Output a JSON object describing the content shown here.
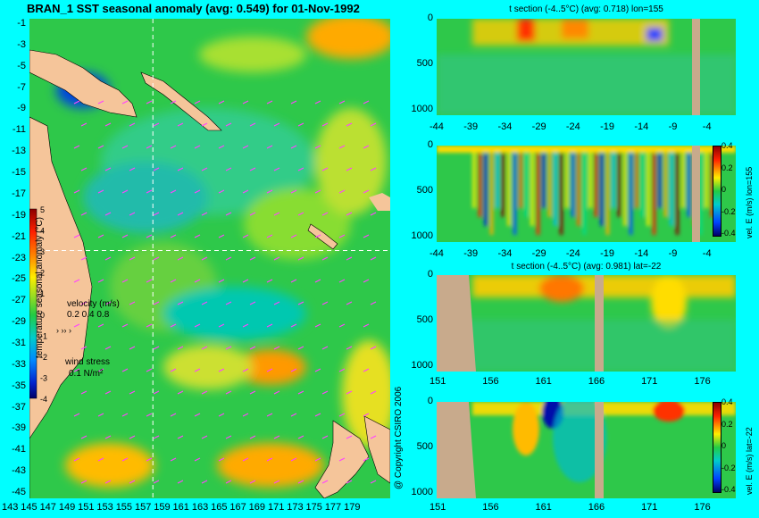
{
  "main_title": "BRAN_1 SST seasonal anomaly (avg: 0.549) for 01-Nov-1992",
  "copyright": "@ Copyright CSIRO 2006",
  "colors": {
    "background": "#00ffff",
    "land": "#f5c59a",
    "section_land": "#c8aa8c",
    "base": "#2ec84a",
    "vector": "#ff44ff",
    "guide": "#ffffff"
  },
  "map": {
    "y_ticks": [
      "-1",
      "-3",
      "-5",
      "-7",
      "-9",
      "-11",
      "-13",
      "-15",
      "-17",
      "-19",
      "-21",
      "-23",
      "-25",
      "-27",
      "-29",
      "-31",
      "-33",
      "-35",
      "-37",
      "-39",
      "-41",
      "-43",
      "-45"
    ],
    "x_ticks": [
      "143",
      "145",
      "147",
      "149",
      "151",
      "153",
      "155",
      "157",
      "159",
      "161",
      "163",
      "165",
      "167",
      "169",
      "171",
      "173",
      "175",
      "177",
      "179"
    ],
    "colorbar": {
      "label": "temperature seasonal anomaly (°C)",
      "ticks": [
        "5",
        "4",
        "3",
        "2",
        "1",
        "0",
        "-1",
        "-2",
        "-3",
        "-4"
      ],
      "range": [
        -4,
        5
      ]
    },
    "velocity_legend": {
      "title": "velocity (m/s)",
      "values": "0.2 0.4 0.8"
    },
    "wind_legend": {
      "title": "wind stress",
      "value": "0.1 N/m²"
    },
    "guide_lon": 155,
    "guide_lat": -22
  },
  "chart_data": [
    {
      "type": "heatmap",
      "title": "BRAN_1 SST seasonal anomaly (avg: 0.549) for 01-Nov-1992",
      "x": [
        "143",
        "145",
        "147",
        "149",
        "151",
        "153",
        "155",
        "157",
        "159",
        "161",
        "163",
        "165",
        "167",
        "169",
        "171",
        "173",
        "175",
        "177",
        "179"
      ],
      "y": [
        "-1",
        "-3",
        "-5",
        "-7",
        "-9",
        "-11",
        "-13",
        "-15",
        "-17",
        "-19",
        "-21",
        "-23",
        "-25",
        "-27",
        "-29",
        "-31",
        "-33",
        "-35",
        "-37",
        "-39",
        "-41",
        "-43",
        "-45"
      ],
      "colorbar_label": "temperature seasonal anomaly (°C)",
      "colorbar_range": [
        -4,
        5
      ]
    },
    {
      "type": "heatmap",
      "title": "t section (-4..5°C) (avg: 0.718) lon=155",
      "x": [
        "-44",
        "-39",
        "-34",
        "-29",
        "-24",
        "-19",
        "-14",
        "-9",
        "-4"
      ],
      "y": [
        "0",
        "500",
        "1000"
      ]
    },
    {
      "type": "heatmap",
      "x": [
        "-44",
        "-39",
        "-34",
        "-29",
        "-24",
        "-19",
        "-14",
        "-9",
        "-4"
      ],
      "y": [
        "0",
        "500",
        "1000"
      ],
      "colorbar_label": "vel. E (m/s) lon=155",
      "colorbar_ticks": [
        "0.4",
        "0.2",
        "0",
        "-0.2",
        "-0.4"
      ],
      "colorbar_range": [
        -0.4,
        0.4
      ]
    },
    {
      "type": "heatmap",
      "title": "t section (-4..5°C) (avg: 0.981) lat=-22",
      "x": [
        "151",
        "156",
        "161",
        "166",
        "171",
        "176"
      ],
      "y": [
        "0",
        "500",
        "1000"
      ]
    },
    {
      "type": "heatmap",
      "x": [
        "151",
        "156",
        "161",
        "166",
        "171",
        "176"
      ],
      "y": [
        "0",
        "500",
        "1000"
      ],
      "colorbar_label": "vel. E (m/s) lat=-22",
      "colorbar_ticks": [
        "0.4",
        "0.2",
        "0",
        "-0.2",
        "-0.4"
      ],
      "colorbar_range": [
        -0.4,
        0.4
      ]
    }
  ],
  "panels": [
    {
      "title": "t section (-4..5°C) (avg: 0.718) lon=155",
      "x_ticks": [
        "-44",
        "-39",
        "-34",
        "-29",
        "-24",
        "-19",
        "-14",
        "-9",
        "-4"
      ],
      "y_ticks": [
        "0",
        "500",
        "1000"
      ]
    },
    {
      "title": "",
      "x_ticks": [
        "-44",
        "-39",
        "-34",
        "-29",
        "-24",
        "-19",
        "-14",
        "-9",
        "-4"
      ],
      "y_ticks": [
        "0",
        "500",
        "1000"
      ],
      "colorbar_label": "vel. E (m/s) lon=155",
      "colorbar_ticks": [
        "0.4",
        "0.2",
        "0",
        "-0.2",
        "-0.4"
      ]
    },
    {
      "title": "t section (-4..5°C) (avg: 0.981) lat=-22",
      "x_ticks": [
        "151",
        "156",
        "161",
        "166",
        "171",
        "176"
      ],
      "y_ticks": [
        "0",
        "500",
        "1000"
      ]
    },
    {
      "title": "",
      "x_ticks": [
        "151",
        "156",
        "161",
        "166",
        "171",
        "176"
      ],
      "y_ticks": [
        "0",
        "500",
        "1000"
      ],
      "colorbar_label": "vel. E (m/s) lat=-22",
      "colorbar_ticks": [
        "0.4",
        "0.2",
        "0",
        "-0.2",
        "-0.4"
      ]
    }
  ]
}
